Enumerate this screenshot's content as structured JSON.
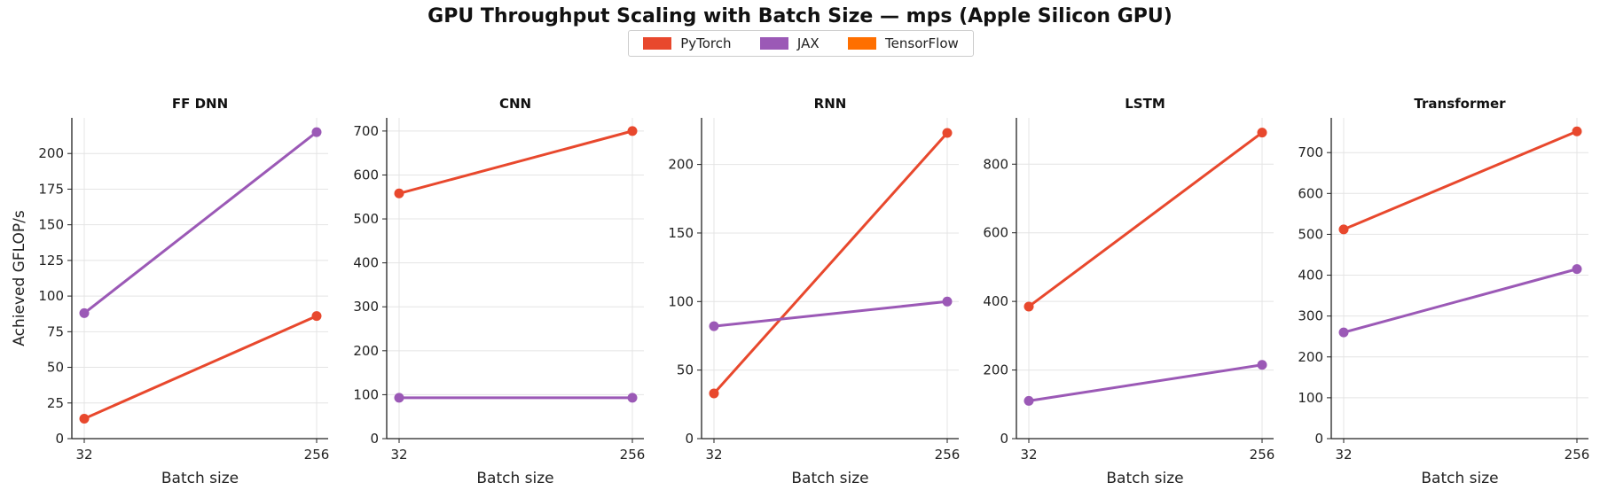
{
  "title": "GPU Throughput Scaling with Batch Size — mps (Apple Silicon GPU)",
  "legend": [
    {
      "name": "PyTorch",
      "color": "#e8482d"
    },
    {
      "name": "JAX",
      "color": "#9b59b6"
    },
    {
      "name": "TensorFlow",
      "color": "#ff6f00"
    }
  ],
  "chart_data": [
    {
      "type": "line",
      "title": "FF DNN",
      "xlabel": "Batch size",
      "ylabel": "Achieved GFLOP/s",
      "x": [
        "32",
        "256"
      ],
      "ylim": [
        0,
        225
      ],
      "yticks": [
        0,
        25,
        50,
        75,
        100,
        125,
        150,
        175,
        200
      ],
      "grid": true,
      "series": [
        {
          "name": "PyTorch",
          "color": "#e8482d",
          "values": [
            14,
            86
          ]
        },
        {
          "name": "JAX",
          "color": "#9b59b6",
          "values": [
            88,
            215
          ]
        }
      ]
    },
    {
      "type": "line",
      "title": "CNN",
      "xlabel": "Batch size",
      "ylabel": "",
      "x": [
        "32",
        "256"
      ],
      "ylim": [
        0,
        730
      ],
      "yticks": [
        0,
        100,
        200,
        300,
        400,
        500,
        600,
        700
      ],
      "grid": true,
      "series": [
        {
          "name": "PyTorch",
          "color": "#e8482d",
          "values": [
            558,
            700
          ]
        },
        {
          "name": "JAX",
          "color": "#9b59b6",
          "values": [
            93,
            93
          ]
        }
      ]
    },
    {
      "type": "line",
      "title": "RNN",
      "xlabel": "Batch size",
      "ylabel": "",
      "x": [
        "32",
        "256"
      ],
      "ylim": [
        0,
        234
      ],
      "yticks": [
        0,
        50,
        100,
        150,
        200
      ],
      "grid": true,
      "series": [
        {
          "name": "PyTorch",
          "color": "#e8482d",
          "values": [
            33,
            223
          ]
        },
        {
          "name": "JAX",
          "color": "#9b59b6",
          "values": [
            82,
            100
          ]
        }
      ]
    },
    {
      "type": "line",
      "title": "LSTM",
      "xlabel": "Batch size",
      "ylabel": "",
      "x": [
        "32",
        "256"
      ],
      "ylim": [
        0,
        935
      ],
      "yticks": [
        0,
        200,
        400,
        600,
        800
      ],
      "grid": true,
      "series": [
        {
          "name": "PyTorch",
          "color": "#e8482d",
          "values": [
            385,
            892
          ]
        },
        {
          "name": "JAX",
          "color": "#9b59b6",
          "values": [
            110,
            215
          ]
        }
      ]
    },
    {
      "type": "line",
      "title": "Transformer",
      "xlabel": "Batch size",
      "ylabel": "",
      "x": [
        "32",
        "256"
      ],
      "ylim": [
        0,
        785
      ],
      "yticks": [
        0,
        100,
        200,
        300,
        400,
        500,
        600,
        700
      ],
      "grid": true,
      "series": [
        {
          "name": "PyTorch",
          "color": "#e8482d",
          "values": [
            512,
            752
          ]
        },
        {
          "name": "JAX",
          "color": "#9b59b6",
          "values": [
            260,
            415
          ]
        }
      ]
    }
  ]
}
